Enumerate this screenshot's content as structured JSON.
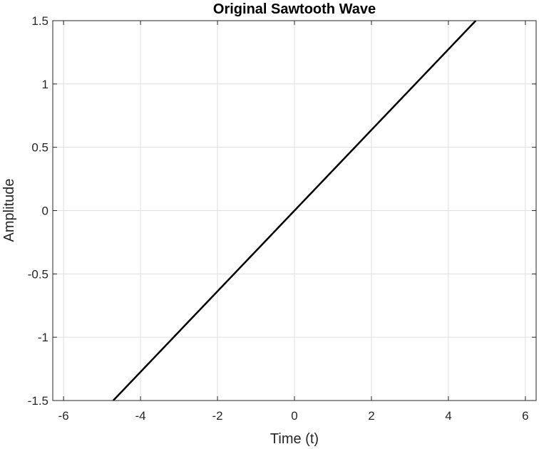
{
  "chart_data": {
    "type": "line",
    "title": "Original Sawtooth Wave",
    "xlabel": "Time (t)",
    "ylabel": "Amplitude",
    "xlim": [
      -6.28,
      6.28
    ],
    "ylim": [
      -1.5,
      1.5
    ],
    "xticks": [
      -6,
      -4,
      -2,
      0,
      2,
      4,
      6
    ],
    "xtick_labels": [
      "-6",
      "-4",
      "-2",
      "0",
      "2",
      "4",
      "6"
    ],
    "yticks": [
      -1.5,
      -1,
      -0.5,
      0,
      0.5,
      1,
      1.5
    ],
    "ytick_labels": [
      "-1.5",
      "-1",
      "-0.5",
      "0",
      "0.5",
      "1",
      "1.5"
    ],
    "grid": true,
    "series": [
      {
        "color": "#000000",
        "x": [
          -4.71,
          4.71
        ],
        "y": [
          -1.5,
          1.5
        ]
      }
    ]
  }
}
